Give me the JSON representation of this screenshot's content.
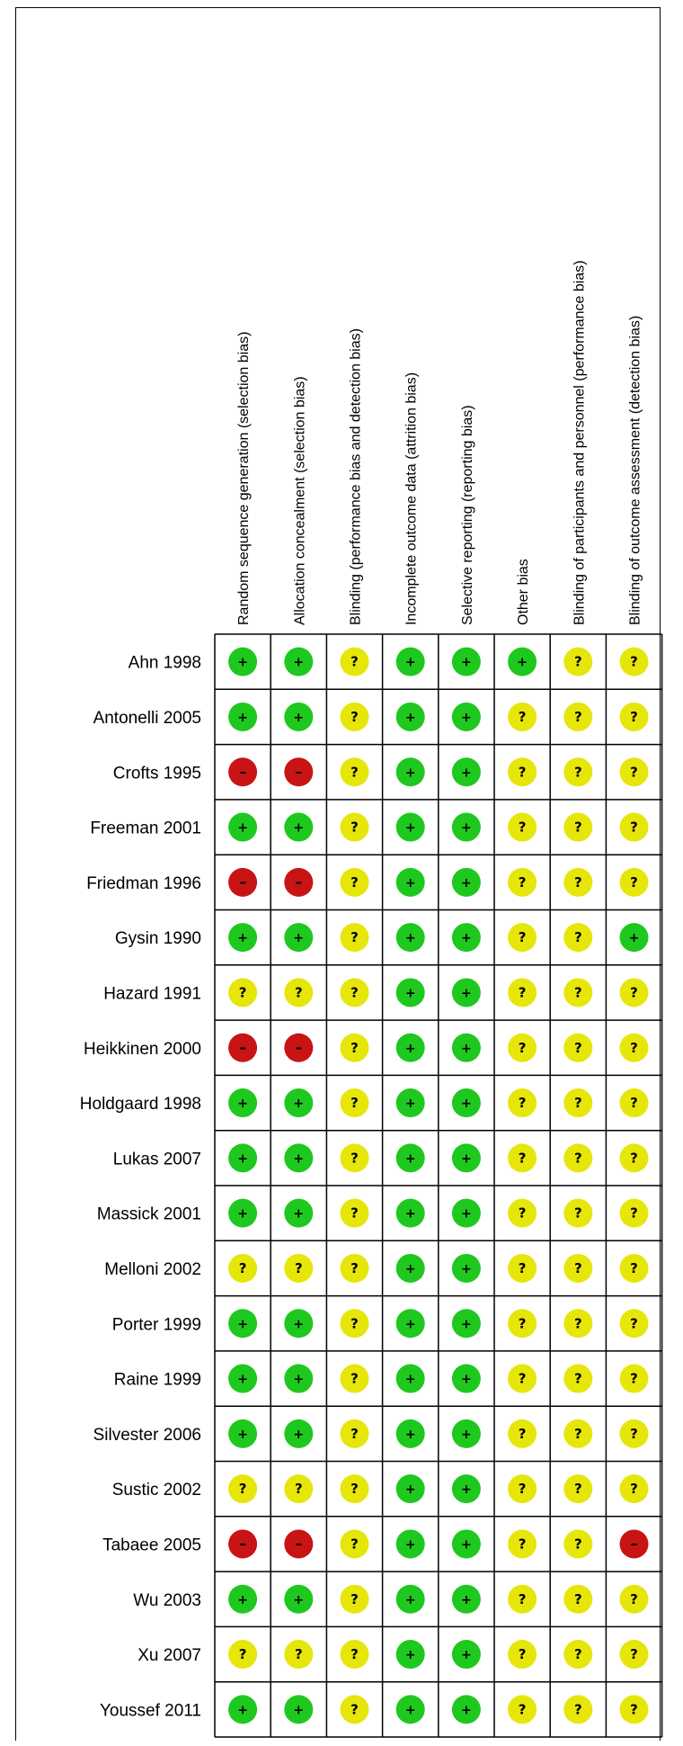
{
  "chart_data": {
    "type": "table",
    "title": "",
    "columns": [
      "Random sequence generation (selection bias)",
      "Allocation concealment (selection bias)",
      "Blinding (performance bias and detection bias)",
      "Incomplete outcome data (attrition bias)",
      "Selective reporting (reporting bias)",
      "Other bias",
      "Blinding of participants and personnel (performance bias)",
      "Blinding of outcome assessment (detection bias)"
    ],
    "legend": {
      "low": {
        "symbol": "+",
        "color": "#1ec81e"
      },
      "unclear": {
        "symbol": "?",
        "color": "#e6e60a"
      },
      "high": {
        "symbol": "–",
        "color": "#c81414"
      }
    },
    "rows": [
      {
        "study": "Ahn 1998",
        "values": [
          "low",
          "low",
          "unclear",
          "low",
          "low",
          "low",
          "unclear",
          "unclear"
        ]
      },
      {
        "study": "Antonelli 2005",
        "values": [
          "low",
          "low",
          "unclear",
          "low",
          "low",
          "unclear",
          "unclear",
          "unclear"
        ]
      },
      {
        "study": "Crofts 1995",
        "values": [
          "high",
          "high",
          "unclear",
          "low",
          "low",
          "unclear",
          "unclear",
          "unclear"
        ]
      },
      {
        "study": "Freeman 2001",
        "values": [
          "low",
          "low",
          "unclear",
          "low",
          "low",
          "unclear",
          "unclear",
          "unclear"
        ]
      },
      {
        "study": "Friedman 1996",
        "values": [
          "high",
          "high",
          "unclear",
          "low",
          "low",
          "unclear",
          "unclear",
          "unclear"
        ]
      },
      {
        "study": "Gysin 1990",
        "values": [
          "low",
          "low",
          "unclear",
          "low",
          "low",
          "unclear",
          "unclear",
          "low"
        ]
      },
      {
        "study": "Hazard 1991",
        "values": [
          "unclear",
          "unclear",
          "unclear",
          "low",
          "low",
          "unclear",
          "unclear",
          "unclear"
        ]
      },
      {
        "study": "Heikkinen 2000",
        "values": [
          "high",
          "high",
          "unclear",
          "low",
          "low",
          "unclear",
          "unclear",
          "unclear"
        ]
      },
      {
        "study": "Holdgaard 1998",
        "values": [
          "low",
          "low",
          "unclear",
          "low",
          "low",
          "unclear",
          "unclear",
          "unclear"
        ]
      },
      {
        "study": "Lukas 2007",
        "values": [
          "low",
          "low",
          "unclear",
          "low",
          "low",
          "unclear",
          "unclear",
          "unclear"
        ]
      },
      {
        "study": "Massick 2001",
        "values": [
          "low",
          "low",
          "unclear",
          "low",
          "low",
          "unclear",
          "unclear",
          "unclear"
        ]
      },
      {
        "study": "Melloni 2002",
        "values": [
          "unclear",
          "unclear",
          "unclear",
          "low",
          "low",
          "unclear",
          "unclear",
          "unclear"
        ]
      },
      {
        "study": "Porter 1999",
        "values": [
          "low",
          "low",
          "unclear",
          "low",
          "low",
          "unclear",
          "unclear",
          "unclear"
        ]
      },
      {
        "study": "Raine 1999",
        "values": [
          "low",
          "low",
          "unclear",
          "low",
          "low",
          "unclear",
          "unclear",
          "unclear"
        ]
      },
      {
        "study": "Silvester 2006",
        "values": [
          "low",
          "low",
          "unclear",
          "low",
          "low",
          "unclear",
          "unclear",
          "unclear"
        ]
      },
      {
        "study": "Sustic 2002",
        "values": [
          "unclear",
          "unclear",
          "unclear",
          "low",
          "low",
          "unclear",
          "unclear",
          "unclear"
        ]
      },
      {
        "study": "Tabaee 2005",
        "values": [
          "high",
          "high",
          "unclear",
          "low",
          "low",
          "unclear",
          "unclear",
          "high"
        ]
      },
      {
        "study": "Wu 2003",
        "values": [
          "low",
          "low",
          "unclear",
          "low",
          "low",
          "unclear",
          "unclear",
          "unclear"
        ]
      },
      {
        "study": "Xu 2007",
        "values": [
          "unclear",
          "unclear",
          "unclear",
          "low",
          "low",
          "unclear",
          "unclear",
          "unclear"
        ]
      },
      {
        "study": "Youssef 2011",
        "values": [
          "low",
          "low",
          "unclear",
          "low",
          "low",
          "unclear",
          "unclear",
          "unclear"
        ]
      }
    ]
  }
}
